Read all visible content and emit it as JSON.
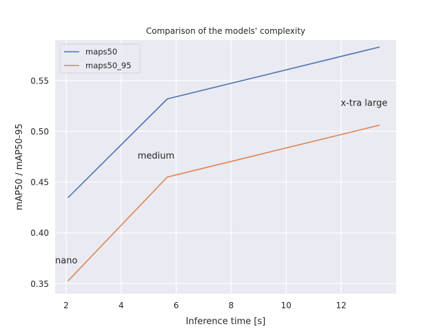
{
  "chart_data": {
    "type": "line",
    "title": "Comparison of the models' complexity",
    "xlabel": "Inference time [s]",
    "ylabel": "mAP50 / mAP50-95",
    "xlim": [
      1.6,
      14.0
    ],
    "ylim": [
      0.34,
      0.59
    ],
    "xticks": [
      2,
      4,
      6,
      8,
      10,
      12
    ],
    "yticks": [
      0.35,
      0.4,
      0.45,
      0.5,
      0.55
    ],
    "ytick_labels": [
      "0.35",
      "0.40",
      "0.45",
      "0.50",
      "0.55"
    ],
    "grid": true,
    "legend_position": "upper-left",
    "series": [
      {
        "name": "maps50",
        "color": "#4c72b0",
        "x": [
          2.08,
          5.68,
          13.38
        ],
        "y": [
          0.435,
          0.532,
          0.583
        ]
      },
      {
        "name": "maps50_95",
        "color": "#dd8452",
        "x": [
          2.08,
          5.68,
          13.38
        ],
        "y": [
          0.353,
          0.455,
          0.506
        ]
      }
    ],
    "annotations": [
      {
        "text": "nano",
        "x": 1.6,
        "y": 0.37
      },
      {
        "text": "medium",
        "x": 4.6,
        "y": 0.473
      },
      {
        "text": "x-tra large",
        "x": 11.98,
        "y": 0.525
      }
    ]
  }
}
